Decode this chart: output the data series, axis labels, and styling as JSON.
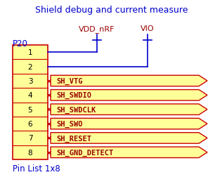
{
  "title": "Shield debug and current measure",
  "title_color": "#0000cc",
  "connector_label": "P20",
  "connector_label_color": "#0000cc",
  "bottom_label": "Pin List 1x8",
  "bottom_label_color": "#0000cc",
  "vdd_label": "VDD_nRF",
  "vio_label": "VIO",
  "power_label_color": "#990000",
  "signal_display": [
    "SH_VTG",
    "SH_SWDIO",
    "SH_SWDCLK",
    "SH_SWO",
    "SH_RESET",
    "SH_GND_DETECT"
  ],
  "connector_fill": "#ffff99",
  "connector_edge": "#cc0000",
  "arrow_fill": "#ffff99",
  "arrow_edge": "#cc0000",
  "arrow_text_color": "#990000",
  "wire_color": "#0000cc",
  "x_color": "#cc0000",
  "bg_color": "#ffffff"
}
